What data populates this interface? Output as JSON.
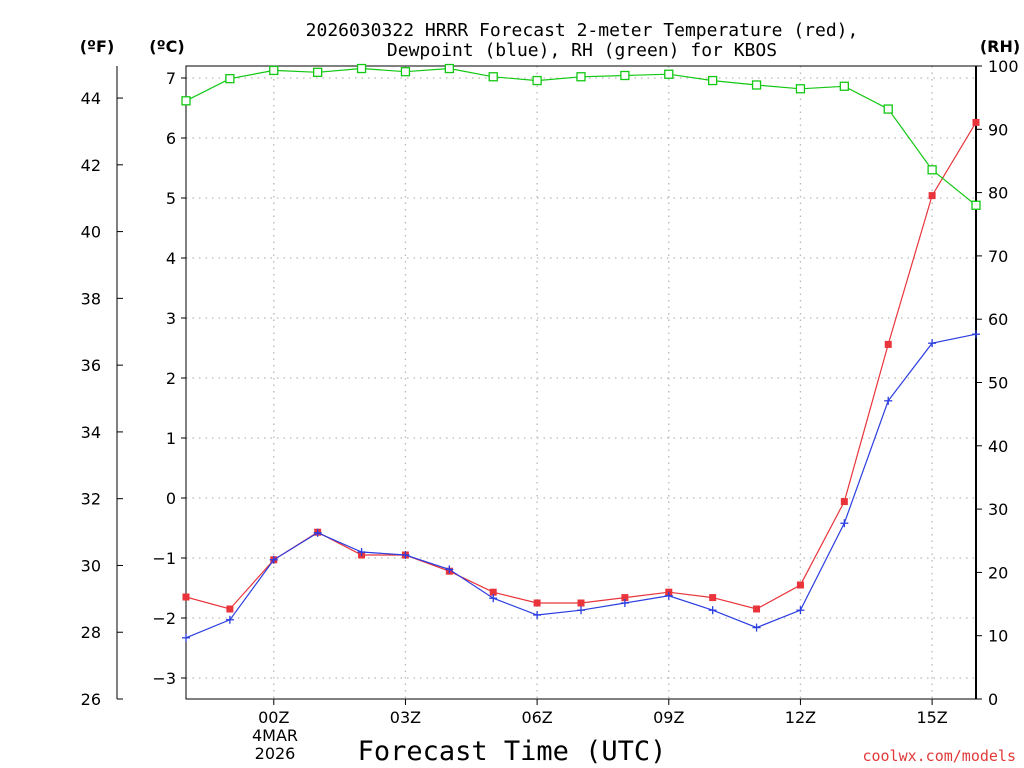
{
  "chart_data": {
    "type": "line",
    "title_line1": "2026030322 HRRR Forecast 2-meter Temperature (red),",
    "title_line2": "Dewpoint (blue), RH (green) for KBOS",
    "xlabel": "Forecast Time (UTC)",
    "left_outer_unit": "(ºF)",
    "left_inner_unit": "(ºC)",
    "right_unit": "(RH)",
    "credit": "coolwx.com/models",
    "date_line1": "4MAR",
    "date_line2": "2026",
    "x": [
      -2,
      -1,
      0,
      1,
      2,
      3,
      4,
      5,
      6,
      7,
      8,
      9,
      10,
      11,
      12,
      13,
      14,
      15,
      16
    ],
    "xlim": [
      -2,
      16
    ],
    "x_ticks": [
      0,
      3,
      6,
      9,
      12,
      15
    ],
    "x_tick_labels": [
      "00Z",
      "03Z",
      "06Z",
      "09Z",
      "12Z",
      "15Z"
    ],
    "ylim_c": [
      -3.35,
      7.2
    ],
    "y_ticks_c": [
      -3,
      -2,
      -1,
      0,
      1,
      2,
      3,
      4,
      5,
      6,
      7
    ],
    "ylim_f": [
      26,
      44.96
    ],
    "y_ticks_f": [
      26,
      28,
      30,
      32,
      34,
      36,
      38,
      40,
      42,
      44
    ],
    "ylim_rh": [
      0,
      100
    ],
    "y_ticks_rh": [
      0,
      10,
      20,
      30,
      40,
      50,
      60,
      70,
      80,
      90,
      100
    ],
    "series": [
      {
        "name": "Temperature",
        "unit": "C",
        "color": "#e8343a",
        "marker": "filled-square",
        "values": [
          -1.65,
          -1.85,
          -1.03,
          -0.57,
          -0.95,
          -0.95,
          -1.22,
          -1.57,
          -1.75,
          -1.75,
          -1.66,
          -1.57,
          -1.66,
          -1.85,
          -1.45,
          -0.06,
          2.56,
          5.04,
          6.26
        ]
      },
      {
        "name": "Dewpoint",
        "unit": "C",
        "color": "#2a3de0",
        "marker": "plus",
        "values": [
          -2.33,
          -2.03,
          -1.03,
          -0.58,
          -0.9,
          -0.95,
          -1.19,
          -1.67,
          -1.95,
          -1.87,
          -1.75,
          -1.63,
          -1.87,
          -2.16,
          -1.87,
          -0.42,
          1.62,
          2.58,
          2.73
        ]
      },
      {
        "name": "RH",
        "unit": "%",
        "color": "#12c812",
        "marker": "open-square",
        "values": [
          94.5,
          98.0,
          99.3,
          99.0,
          99.6,
          99.1,
          99.6,
          98.3,
          97.7,
          98.3,
          98.5,
          98.7,
          97.7,
          97.0,
          96.4,
          96.8,
          93.2,
          83.6,
          78.0
        ]
      }
    ]
  }
}
